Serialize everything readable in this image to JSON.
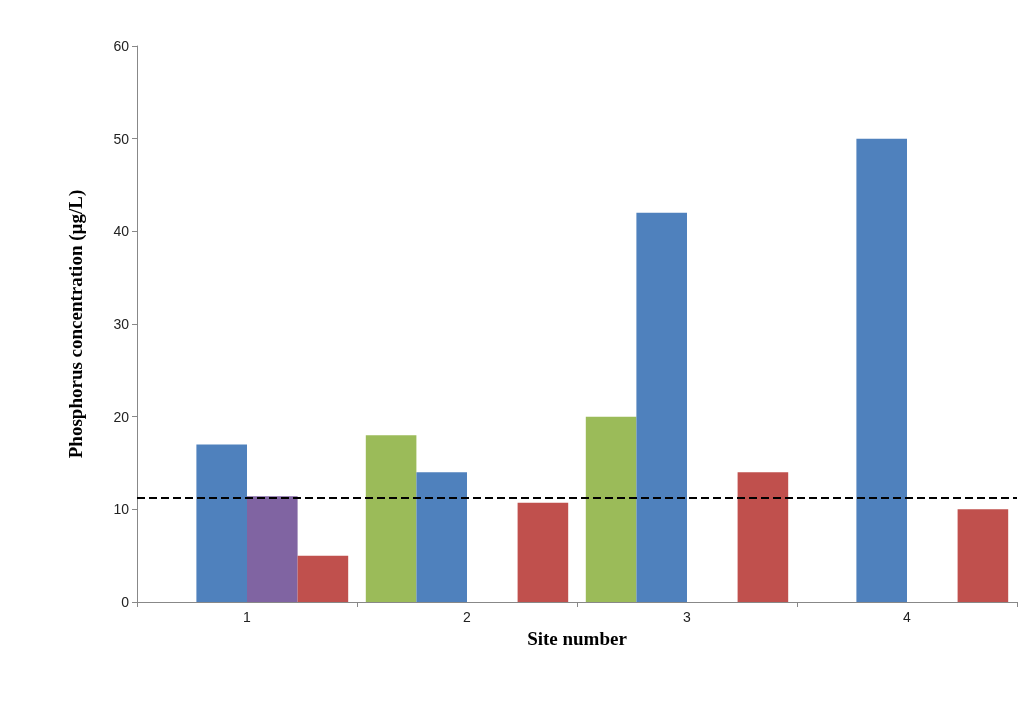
{
  "chart_data": {
    "type": "bar",
    "xlabel": "Site number",
    "ylabel": "Phosphorus concentration (µg/L)",
    "categories": [
      "1",
      "2",
      "3",
      "4"
    ],
    "series": [
      {
        "color": "#9bbb59",
        "values": [
          null,
          18,
          20,
          null
        ]
      },
      {
        "color": "#4f81bd",
        "values": [
          17,
          14,
          42,
          50
        ]
      },
      {
        "color": "#8064a2",
        "values": [
          11.4,
          null,
          null,
          null
        ]
      },
      {
        "color": "#c0504d",
        "values": [
          5,
          10.7,
          14,
          10
        ]
      }
    ],
    "ylim": [
      0,
      60
    ],
    "yticks": [
      0,
      10,
      20,
      30,
      40,
      50,
      60
    ],
    "grid": false,
    "ref_lines": [
      {
        "axis": "y",
        "value": 11.2,
        "color": "#000000",
        "line_style": "dashed"
      }
    ]
  }
}
